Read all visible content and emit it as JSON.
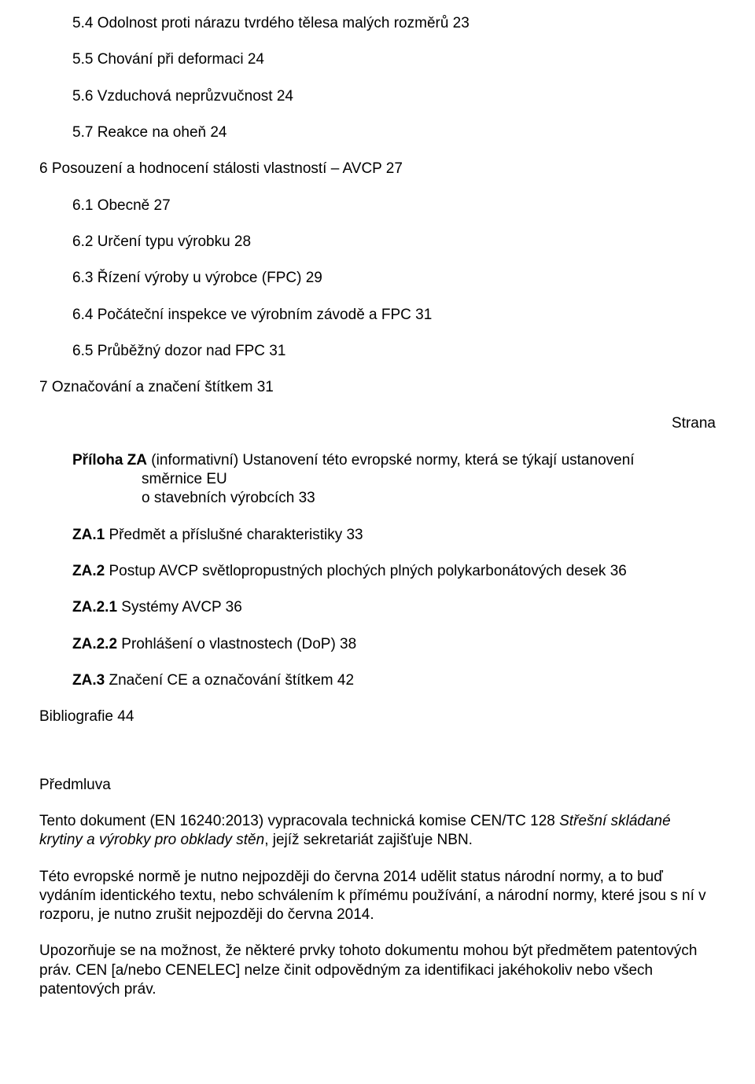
{
  "toc": {
    "i54": "5.4 Odolnost proti nárazu tvrdého tělesa malých rozměrů 23",
    "i55": "5.5 Chování při deformaci 24",
    "i56": "5.6 Vzduchová neprůzvučnost 24",
    "i57": "5.7 Reakce na oheň 24",
    "i6": "6 Posouzení a hodnocení stálosti vlastností – AVCP 27",
    "i61": "6.1 Obecně 27",
    "i62": "6.2 Určení typu výrobku 28",
    "i63": "6.3 Řízení výroby u výrobce (FPC) 29",
    "i64": "6.4 Počáteční inspekce ve výrobním závodě a FPC 31",
    "i65": "6.5 Průběžný dozor nad FPC 31",
    "i7": "7 Označování a značení štítkem 31",
    "strana": "Strana",
    "za_lead": "Příloha ZA",
    "za_rest_line1": " (informativní) Ustanovení této evropské normy, která se týkají ustanovení",
    "za_rest_line2": "směrnice EU",
    "za_rest_line3": "o stavebních výrobcích 33",
    "za1_lead": "ZA.1",
    "za1_rest": " Předmět a příslušné charakteristiky 33",
    "za2_lead": "ZA.2",
    "za2_rest": " Postup AVCP světlopropustných plochých plných polykarbonátových desek 36",
    "za21_lead": "ZA.2.1",
    "za21_rest": " Systémy AVCP 36",
    "za22_lead": "ZA.2.2",
    "za22_rest": " Prohlášení o vlastnostech (DoP) 38",
    "za3_lead": "ZA.3",
    "za3_rest": " Značení CE a označování štítkem 42",
    "bib": "Bibliografie 44"
  },
  "foreword": {
    "title": "Předmluva",
    "p1_a": "Tento dokument (EN 16240:2013) vypracovala technická komise CEN/TC 128 ",
    "p1_i": "Střešní skládané krytiny a výrobky pro obklady stěn",
    "p1_b": ", jejíž sekretariát zajišťuje NBN.",
    "p2": "Této evropské normě je nutno nejpozději do června 2014 udělit status národní normy, a to buď vydáním identického textu, nebo schválením k přímému používání, a národní normy, které jsou s ní v rozporu, je nutno zrušit nejpozději do června 2014.",
    "p3": "Upozorňuje se na možnost, že některé prvky tohoto dokumentu mohou být předmětem patentových práv. CEN [a/nebo CENELEC] nelze činit odpovědným za identifikaci jakéhokoliv nebo všech patentových práv."
  }
}
